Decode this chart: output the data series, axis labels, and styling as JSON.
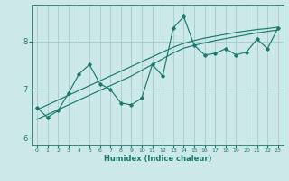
{
  "title": "",
  "xlabel": "Humidex (Indice chaleur)",
  "ylabel": "",
  "bg_color": "#cce8e8",
  "line_color": "#1a7a6e",
  "grid_color": "#aacfcf",
  "x_data": [
    0,
    1,
    2,
    3,
    4,
    5,
    6,
    7,
    8,
    9,
    10,
    11,
    12,
    13,
    14,
    15,
    16,
    17,
    18,
    19,
    20,
    21,
    22,
    23
  ],
  "y_main": [
    6.62,
    6.42,
    6.56,
    6.92,
    7.32,
    7.52,
    7.12,
    7.0,
    6.72,
    6.68,
    6.82,
    7.52,
    7.28,
    8.28,
    8.52,
    7.92,
    7.72,
    7.75,
    7.85,
    7.72,
    7.78,
    8.05,
    7.85,
    8.28
  ],
  "y_reg_upper": [
    6.58,
    6.68,
    6.78,
    6.88,
    6.98,
    7.08,
    7.18,
    7.28,
    7.38,
    7.48,
    7.58,
    7.68,
    7.78,
    7.88,
    7.96,
    8.02,
    8.07,
    8.11,
    8.15,
    8.19,
    8.22,
    8.25,
    8.27,
    8.3
  ],
  "y_reg_lower": [
    6.38,
    6.48,
    6.58,
    6.68,
    6.78,
    6.88,
    6.98,
    7.08,
    7.18,
    7.28,
    7.4,
    7.52,
    7.64,
    7.76,
    7.86,
    7.92,
    7.97,
    8.02,
    8.06,
    8.1,
    8.14,
    8.18,
    8.21,
    8.24
  ],
  "yticks": [
    6,
    7,
    8
  ],
  "ylim": [
    5.85,
    8.75
  ],
  "xlim": [
    -0.5,
    23.5
  ],
  "xticks": [
    0,
    1,
    2,
    3,
    4,
    5,
    6,
    7,
    8,
    9,
    10,
    11,
    12,
    13,
    14,
    15,
    16,
    17,
    18,
    19,
    20,
    21,
    22,
    23
  ]
}
